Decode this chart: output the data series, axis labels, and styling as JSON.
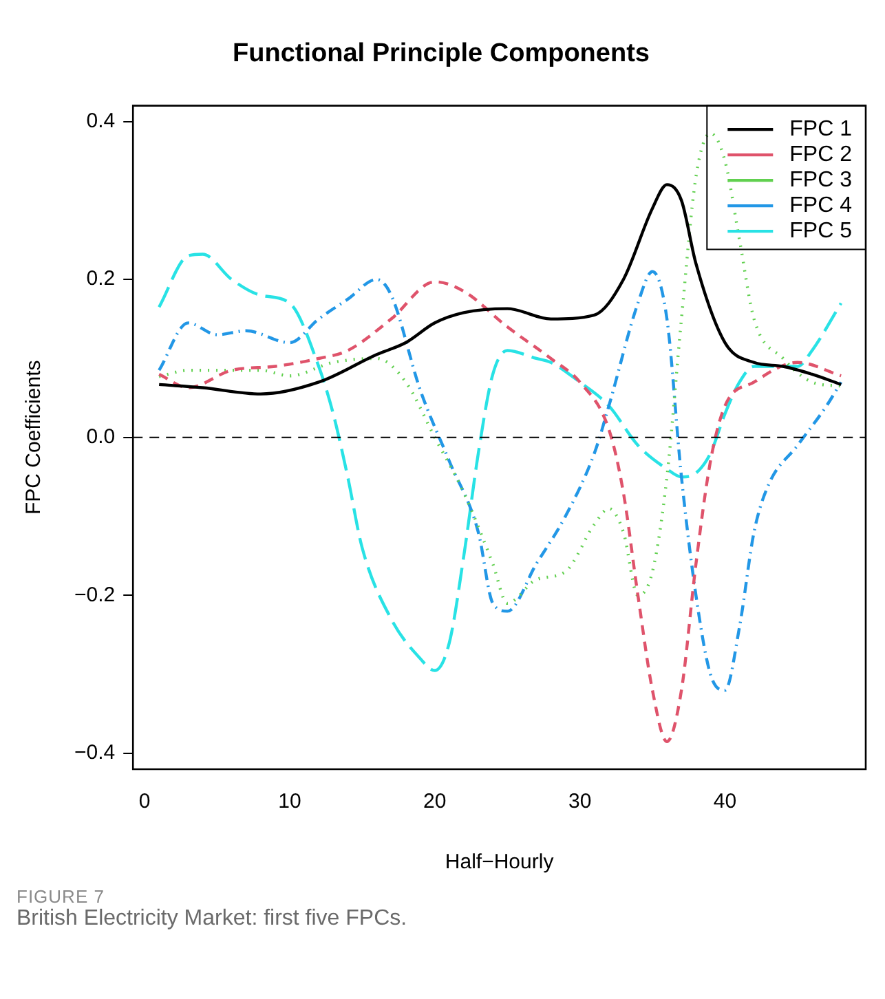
{
  "chart_data": {
    "type": "line",
    "title": "Functional Principle Components",
    "xlabel": "Half−Hourly",
    "ylabel": "FPC Coefficients",
    "series": [
      {
        "name": "FPC 1",
        "color": "#000000",
        "line_style": "solid",
        "x": [
          1,
          4,
          8,
          12,
          16,
          18,
          20,
          22,
          25,
          28,
          31,
          33,
          35,
          36,
          37,
          38,
          40,
          42,
          44,
          46,
          48
        ],
        "values": [
          0.067,
          0.063,
          0.055,
          0.07,
          0.105,
          0.12,
          0.145,
          0.158,
          0.163,
          0.15,
          0.155,
          0.2,
          0.29,
          0.32,
          0.3,
          0.22,
          0.12,
          0.095,
          0.09,
          0.08,
          0.067
        ]
      },
      {
        "name": "FPC 2",
        "color": "#df536b",
        "line_style": "dashed",
        "x": [
          1,
          3,
          6,
          9,
          12,
          14,
          17,
          20,
          22,
          25,
          28,
          30,
          32,
          33,
          34,
          35,
          36,
          37,
          38,
          39,
          40,
          42,
          45,
          48
        ],
        "values": [
          0.08,
          0.063,
          0.085,
          0.09,
          0.1,
          0.11,
          0.15,
          0.197,
          0.185,
          0.14,
          0.1,
          0.07,
          0.01,
          -0.07,
          -0.2,
          -0.32,
          -0.385,
          -0.32,
          -0.16,
          -0.03,
          0.04,
          0.07,
          0.095,
          0.078
        ]
      },
      {
        "name": "FPC 3",
        "color": "#61d04f",
        "line_style": "dotted",
        "x": [
          1,
          3,
          8,
          10,
          13,
          16,
          18,
          20,
          22,
          24,
          25,
          27,
          29,
          31,
          32,
          33,
          34,
          35,
          36,
          37,
          38,
          39,
          40,
          41,
          42,
          44,
          46,
          48
        ],
        "values": [
          0.077,
          0.085,
          0.085,
          0.078,
          0.095,
          0.1,
          0.07,
          0.0,
          -0.07,
          -0.16,
          -0.21,
          -0.18,
          -0.17,
          -0.11,
          -0.09,
          -0.12,
          -0.2,
          -0.17,
          -0.05,
          0.15,
          0.33,
          0.385,
          0.35,
          0.25,
          0.15,
          0.1,
          0.07,
          0.065
        ]
      },
      {
        "name": "FPC 4",
        "color": "#2297e6",
        "line_style": "dashdot",
        "x": [
          1,
          3,
          5,
          7,
          10,
          12,
          14,
          16,
          17,
          19,
          21,
          23,
          24,
          25,
          27,
          29,
          31,
          32,
          34,
          35,
          36,
          37,
          38,
          39,
          40,
          41,
          42,
          43,
          45,
          47,
          48
        ],
        "values": [
          0.085,
          0.145,
          0.13,
          0.135,
          0.12,
          0.15,
          0.175,
          0.2,
          0.18,
          0.06,
          -0.03,
          -0.12,
          -0.21,
          -0.22,
          -0.16,
          -0.1,
          -0.02,
          0.04,
          0.17,
          0.21,
          0.15,
          -0.05,
          -0.2,
          -0.3,
          -0.32,
          -0.24,
          -0.12,
          -0.06,
          -0.01,
          0.04,
          0.07
        ]
      },
      {
        "name": "FPC 5",
        "color": "#28e2e5",
        "line_style": "longdash",
        "x": [
          1,
          3,
          4,
          6,
          8,
          10,
          12,
          13,
          14,
          15,
          17,
          19,
          20,
          21,
          22,
          23,
          24,
          25,
          27,
          28,
          30,
          32,
          34,
          36,
          37,
          38,
          39,
          40,
          41,
          42,
          44,
          45,
          46,
          48
        ],
        "values": [
          0.165,
          0.23,
          0.232,
          0.2,
          0.18,
          0.17,
          0.09,
          0.03,
          -0.05,
          -0.14,
          -0.23,
          -0.28,
          -0.295,
          -0.26,
          -0.15,
          -0.02,
          0.08,
          0.11,
          0.1,
          0.095,
          0.07,
          0.04,
          -0.01,
          -0.04,
          -0.05,
          -0.045,
          -0.02,
          0.03,
          0.07,
          0.09,
          0.09,
          0.09,
          0.11,
          0.17
        ]
      }
    ],
    "xlim": [
      -0.8,
      49.7
    ],
    "xticks": [
      0,
      10,
      20,
      30,
      40
    ],
    "ylim": [
      -0.42,
      0.42
    ],
    "yticks": [
      {
        "value": -0.4,
        "label": "−0.4"
      },
      {
        "value": -0.2,
        "label": "−0.2"
      },
      {
        "value": 0,
        "label": "0.0"
      },
      0.2,
      0.4
    ],
    "ref_lines": [
      {
        "axis": "y",
        "value": 0,
        "color": "#000000",
        "line_style": "dashed"
      }
    ],
    "grid": false,
    "legend": "top right",
    "marker": "none",
    "annotations": [
      "FIGURE 7",
      "British Electricity Market: first five FPCs."
    ]
  }
}
